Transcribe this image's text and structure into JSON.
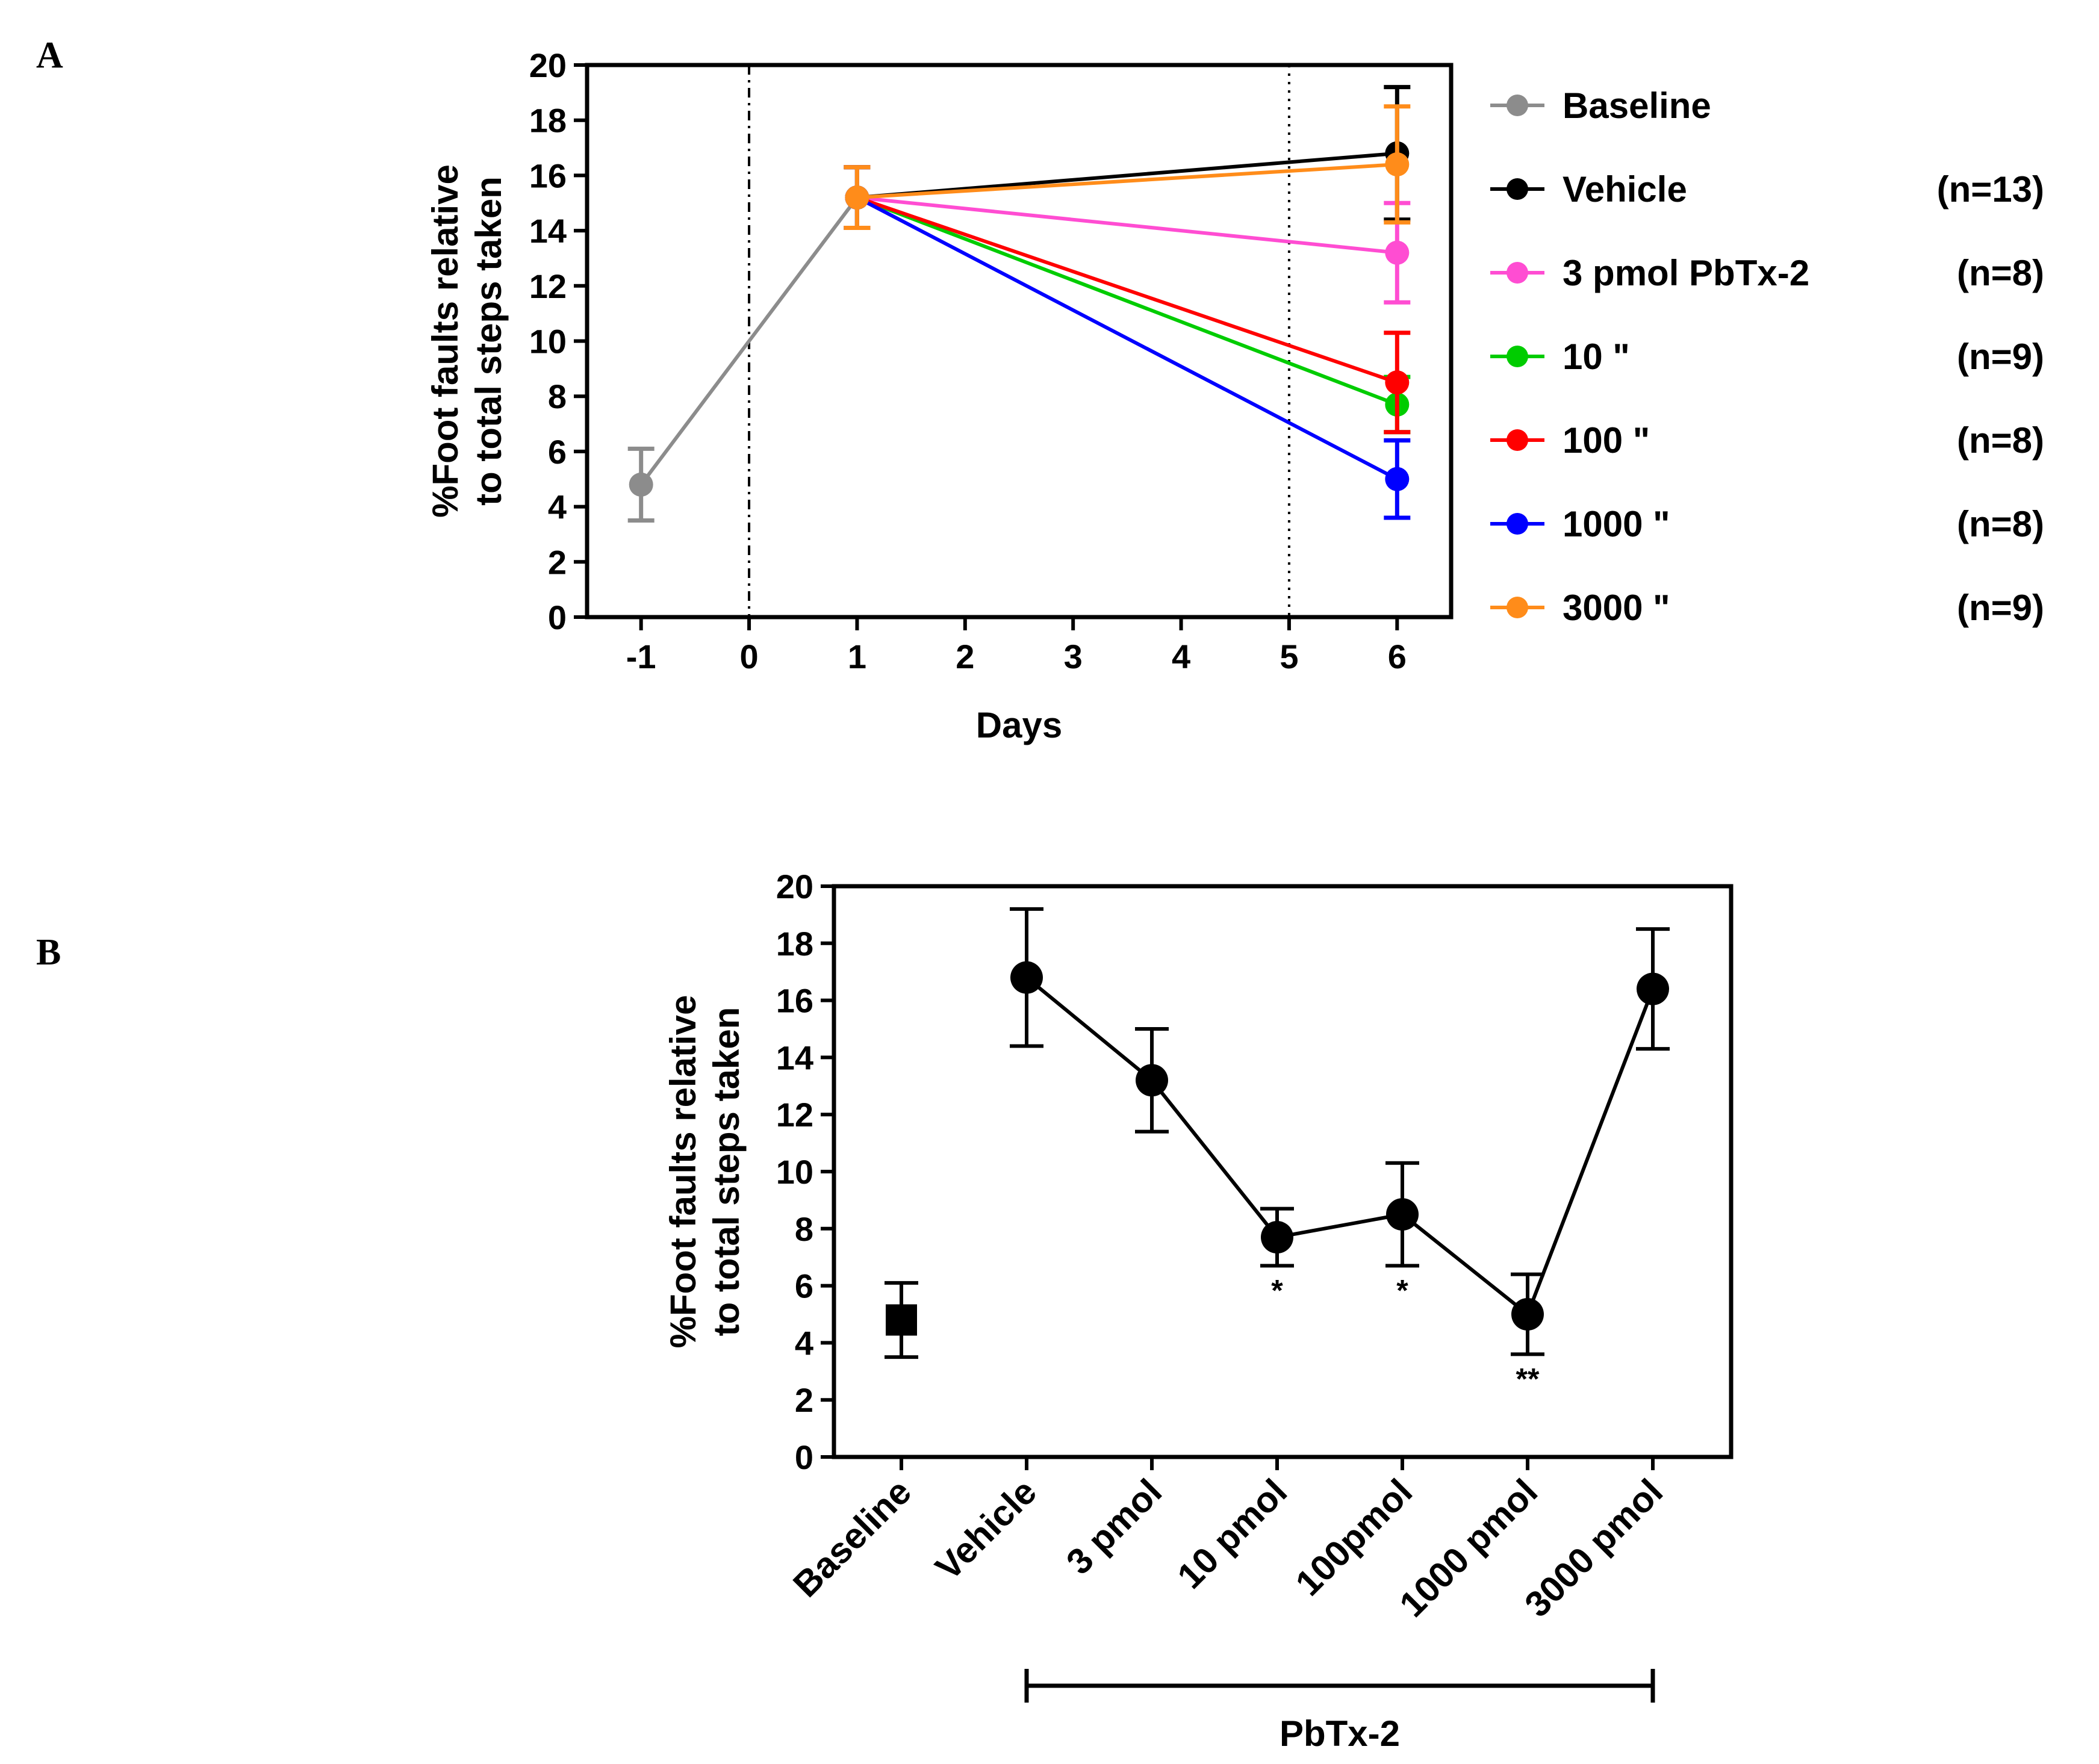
{
  "panels": {
    "a": {
      "letter": "A"
    },
    "b": {
      "letter": "B"
    }
  },
  "chart_data": [
    {
      "id": "A",
      "type": "line",
      "title": "",
      "xlabel": "Days",
      "ylabel_lines": [
        "%Foot faults relative",
        "to total steps taken"
      ],
      "xlim": [
        -1.5,
        6.5
      ],
      "ylim": [
        0,
        20
      ],
      "xticks": [
        -1,
        0,
        1,
        2,
        3,
        4,
        5,
        6
      ],
      "xtick_labels": [
        "-1",
        "0",
        "1",
        "2",
        "3",
        "4",
        "5",
        "6"
      ],
      "yticks": [
        0,
        2,
        4,
        6,
        8,
        10,
        12,
        14,
        16,
        18,
        20
      ],
      "ytick_labels": [
        "0",
        "2",
        "4",
        "6",
        "8",
        "10",
        "12",
        "14",
        "16",
        "18",
        "20"
      ],
      "reference_lines": [
        {
          "x": 0,
          "style": "dash-dot"
        },
        {
          "x": 5,
          "style": "dotted"
        }
      ],
      "grid": false,
      "legend_position": "right",
      "series": [
        {
          "name": "Baseline",
          "n_label": "",
          "color": "#8c8c8c",
          "x": [
            -1,
            1
          ],
          "y": [
            4.8,
            15.2
          ],
          "err": [
            1.3,
            1.1
          ]
        },
        {
          "name": "Vehicle",
          "n_label": "(n=13)",
          "color": "#000000",
          "x": [
            1,
            6
          ],
          "y": [
            15.2,
            16.8
          ],
          "err": [
            1.1,
            2.4
          ]
        },
        {
          "name": "3 pmol PbTx-2",
          "n_label": "(n=8)",
          "color": "#ff4dd2",
          "x": [
            1,
            6
          ],
          "y": [
            15.2,
            13.2
          ],
          "err": [
            1.1,
            1.8
          ]
        },
        {
          "name": "10       \"",
          "n_label": "(n=9)",
          "color": "#00cc00",
          "x": [
            1,
            6
          ],
          "y": [
            15.2,
            7.7
          ],
          "err": [
            1.1,
            1.0
          ]
        },
        {
          "name": "100     \"",
          "n_label": "(n=8)",
          "color": "#ff0000",
          "x": [
            1,
            6
          ],
          "y": [
            15.2,
            8.5
          ],
          "err": [
            1.1,
            1.8
          ]
        },
        {
          "name": "1000   \"",
          "n_label": "(n=8)",
          "color": "#0000ff",
          "x": [
            1,
            6
          ],
          "y": [
            15.2,
            5.0
          ],
          "err": [
            1.1,
            1.4
          ]
        },
        {
          "name": "3000   \"",
          "n_label": "(n=9)",
          "color": "#ff8c1a",
          "x": [
            1,
            6
          ],
          "y": [
            15.2,
            16.4
          ],
          "err": [
            1.1,
            2.1
          ]
        }
      ]
    },
    {
      "id": "B",
      "type": "line",
      "title": "",
      "xlabel": "",
      "ylabel_lines": [
        "%Foot faults relative",
        "to total steps taken"
      ],
      "ylim": [
        0,
        20
      ],
      "yticks": [
        0,
        2,
        4,
        6,
        8,
        10,
        12,
        14,
        16,
        18,
        20
      ],
      "ytick_labels": [
        "0",
        "2",
        "4",
        "6",
        "8",
        "10",
        "12",
        "14",
        "16",
        "18",
        "20"
      ],
      "categories": [
        "Baseline",
        "Vehicle",
        "3 pmol",
        "10 pmol",
        "100pmol",
        "1000 pmol",
        "3000 pmol"
      ],
      "values": [
        4.8,
        16.8,
        13.2,
        7.7,
        8.5,
        5.0,
        16.4
      ],
      "err": [
        1.3,
        2.4,
        1.8,
        1.0,
        1.8,
        1.4,
        2.1
      ],
      "markers": [
        "square",
        "circle",
        "circle",
        "circle",
        "circle",
        "circle",
        "circle"
      ],
      "connected_from_index": 1,
      "significance": [
        "",
        "",
        "",
        "*",
        "*",
        "**",
        ""
      ],
      "bracket": {
        "label": "PbTx-2",
        "from_index": 1,
        "to_index": 6
      },
      "color": "#000000",
      "grid": false
    }
  ]
}
